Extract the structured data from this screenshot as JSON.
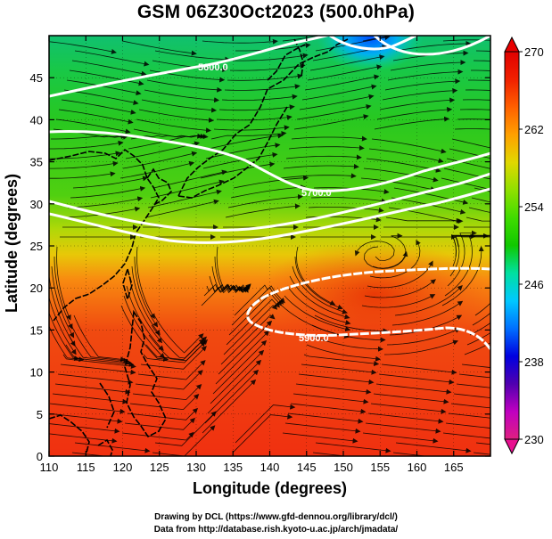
{
  "map": {
    "title": "GSM 06Z30Oct2023 (500.0hPa)",
    "xlabel": "Longitude (degrees)",
    "ylabel": "Latitude  (degrees)",
    "x_ticks": [
      "110",
      "115",
      "120",
      "125",
      "130",
      "135",
      "140",
      "145",
      "150",
      "155",
      "160",
      "165"
    ],
    "y_ticks": [
      "0",
      "5",
      "10",
      "15",
      "20",
      "25",
      "30",
      "35",
      "40",
      "45"
    ],
    "contour_labels": [
      "5600.0",
      "5700.0",
      "5900.0"
    ],
    "colorbar": {
      "ticks": [
        "230",
        "238",
        "246",
        "254",
        "262",
        "270"
      ],
      "colors": [
        "#e02080",
        "#c000c0",
        "#5000b0",
        "#0000e0",
        "#0070ff",
        "#00c8ff",
        "#00e0a0",
        "#10c800",
        "#40dc00",
        "#90e000",
        "#e0d800",
        "#ffa000",
        "#ff6000",
        "#f02000",
        "#e00000"
      ]
    },
    "credits": {
      "line1": "Drawing by DCL (https://www.gfd-dennou.org/library/dcl/)",
      "line2": "Data from http://database.rish.kyoto-u.ac.jp/arch/jmadata/"
    }
  }
}
